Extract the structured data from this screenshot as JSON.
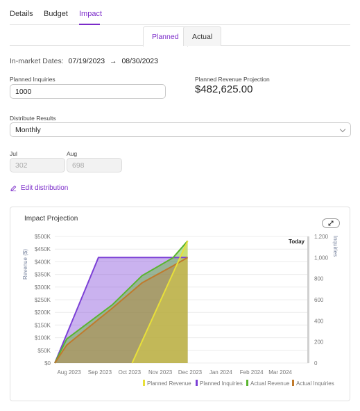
{
  "tabs": [
    {
      "label": "Details",
      "active": false
    },
    {
      "label": "Budget",
      "active": false
    },
    {
      "label": "Impact",
      "active": true
    }
  ],
  "subtabs": [
    {
      "label": "Planned",
      "active": true
    },
    {
      "label": "Actual",
      "active": false
    }
  ],
  "dates": {
    "label": "In-market Dates:",
    "start": "07/19/2023",
    "end": "08/30/2023"
  },
  "planned_inquiries": {
    "label": "Planned Inquiries",
    "value": "1000"
  },
  "revenue_projection": {
    "label": "Planned Revenue Projection",
    "value": "$482,625.00"
  },
  "distribute": {
    "label": "Distribute Results",
    "value": "Monthly"
  },
  "months": [
    {
      "label": "Jul",
      "value": "302"
    },
    {
      "label": "Aug",
      "value": "698"
    }
  ],
  "edit_distribution_label": "Edit distribution",
  "chart_title": "Impact Projection",
  "chart_data": {
    "type": "area",
    "x": [
      "Aug 2023",
      "Sep 2023",
      "Oct 2023",
      "Nov 2023",
      "Dec 2023",
      "Jan 2024",
      "Feb 2024",
      "Mar 2024"
    ],
    "left_axis": {
      "label": "Revenue ($)",
      "ticks": [
        "$0",
        "$50K",
        "$100K",
        "$150K",
        "$200K",
        "$250K",
        "$300K",
        "$350K",
        "$400K",
        "$450K",
        "$500K"
      ],
      "ylim": [
        0,
        500000
      ]
    },
    "right_axis": {
      "label": "Inquiries",
      "ticks": [
        "0",
        "200",
        "400",
        "600",
        "800",
        "1,000",
        "1,200"
      ],
      "ylim": [
        0,
        1200
      ]
    },
    "today_label": "Today",
    "today_x": "2023-11-30",
    "series": [
      {
        "name": "Planned Revenue",
        "axis": "left",
        "color": "#e8e03a",
        "points": [
          [
            "2023-10-05",
            0
          ],
          [
            "2023-11-30",
            482625
          ]
        ]
      },
      {
        "name": "Planned Inquiries",
        "axis": "right",
        "color": "#7b3fd6",
        "points": [
          [
            "2023-07-19",
            0
          ],
          [
            "2023-09-01",
            1000
          ],
          [
            "2023-11-30",
            1000
          ]
        ]
      },
      {
        "name": "Actual Revenue",
        "axis": "left",
        "color": "#5ab52f",
        "points": [
          [
            "2023-07-19",
            0
          ],
          [
            "2023-07-31",
            95000
          ],
          [
            "2023-09-15",
            230000
          ],
          [
            "2023-10-15",
            345000
          ],
          [
            "2023-11-15",
            415000
          ],
          [
            "2023-11-30",
            482625
          ]
        ]
      },
      {
        "name": "Actual Inquiries",
        "axis": "right",
        "color": "#c07a2c",
        "points": [
          [
            "2023-07-19",
            0
          ],
          [
            "2023-07-31",
            170
          ],
          [
            "2023-09-15",
            520
          ],
          [
            "2023-10-15",
            760
          ],
          [
            "2023-11-15",
            920
          ],
          [
            "2023-11-30",
            1000
          ]
        ]
      }
    ],
    "legend": "bottom-right",
    "grid": true
  }
}
